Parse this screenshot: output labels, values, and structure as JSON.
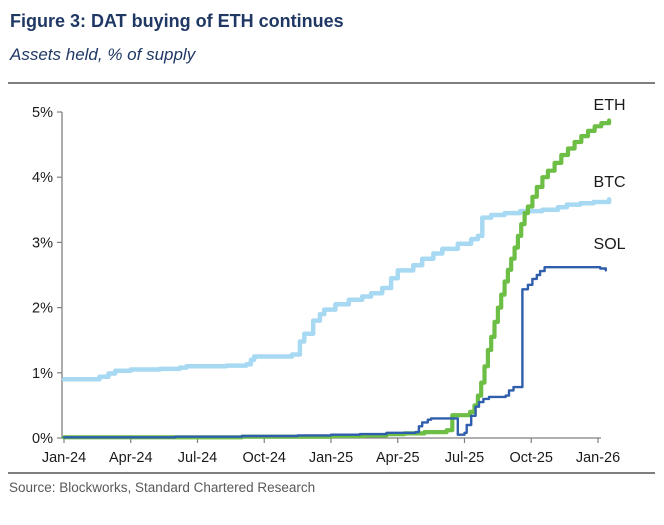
{
  "figure": {
    "title": "Figure 3: DAT buying of ETH continues",
    "subtitle": "Assets held, % of supply",
    "source": "Source: Blockworks, Standard Chartered Research"
  },
  "colors": {
    "title_navy": "#1F3864",
    "rule_gray": "#7F7F7F",
    "axis_gray": "#808080",
    "tick_text": "#1A1A1A",
    "eth_green": "#6CBE45",
    "btc_light_blue": "#A8D9F2",
    "sol_blue": "#2F5FAC",
    "source_gray": "#595959"
  },
  "chart_data": {
    "type": "line",
    "title": "Figure 3: DAT buying of ETH continues",
    "subtitle": "Assets held, % of supply",
    "xlabel": "",
    "ylabel": "Assets held, % of supply",
    "x_unit": "months since Jan-2024",
    "xlim": [
      0,
      24.6
    ],
    "ylim": [
      0,
      5
    ],
    "grid": false,
    "legend_position": "end-of-line labels",
    "x_tick_months": [
      0,
      3,
      6,
      9,
      12,
      15,
      18,
      21,
      24
    ],
    "x_tick_labels": [
      "Jan-24",
      "Apr-24",
      "Jul-24",
      "Oct-24",
      "Jan-25",
      "Apr-25",
      "Jul-25",
      "Oct-25",
      "Jan-26"
    ],
    "y_tick_labels": [
      "0%",
      "1%",
      "2%",
      "3%",
      "4%",
      "5%"
    ],
    "series": [
      {
        "name": "BTC",
        "color": "#A8D9F2",
        "thickness": 4.5,
        "label_at": [
          23.8,
          3.85
        ],
        "points": [
          [
            0,
            0.9
          ],
          [
            1.3,
            0.9
          ],
          [
            1.6,
            0.94
          ],
          [
            2.0,
            0.99
          ],
          [
            2.3,
            1.03
          ],
          [
            3.0,
            1.05
          ],
          [
            4.3,
            1.06
          ],
          [
            5.2,
            1.08
          ],
          [
            5.5,
            1.1
          ],
          [
            7.3,
            1.11
          ],
          [
            8.2,
            1.13
          ],
          [
            8.4,
            1.2
          ],
          [
            8.55,
            1.25
          ],
          [
            10.25,
            1.28
          ],
          [
            10.6,
            1.48
          ],
          [
            10.8,
            1.6
          ],
          [
            11.2,
            1.8
          ],
          [
            11.5,
            1.9
          ],
          [
            11.7,
            1.97
          ],
          [
            12.2,
            2.05
          ],
          [
            12.8,
            2.12
          ],
          [
            13.4,
            2.17
          ],
          [
            13.8,
            2.22
          ],
          [
            14.3,
            2.3
          ],
          [
            14.7,
            2.45
          ],
          [
            15.0,
            2.57
          ],
          [
            15.7,
            2.65
          ],
          [
            16.1,
            2.75
          ],
          [
            16.6,
            2.83
          ],
          [
            17.0,
            2.9
          ],
          [
            17.7,
            2.98
          ],
          [
            18.3,
            3.05
          ],
          [
            18.6,
            3.1
          ],
          [
            18.8,
            3.12
          ],
          [
            18.8,
            3.38
          ],
          [
            19.2,
            3.42
          ],
          [
            19.8,
            3.45
          ],
          [
            20.5,
            3.48
          ],
          [
            21.5,
            3.5
          ],
          [
            22.2,
            3.54
          ],
          [
            22.6,
            3.58
          ],
          [
            23.2,
            3.6
          ],
          [
            23.8,
            3.62
          ],
          [
            24.5,
            3.66
          ]
        ]
      },
      {
        "name": "ETH",
        "color": "#6CBE45",
        "thickness": 4.2,
        "label_at": [
          23.8,
          5.03
        ],
        "points": [
          [
            0,
            0.01
          ],
          [
            8,
            0.02
          ],
          [
            12,
            0.03
          ],
          [
            13.5,
            0.04
          ],
          [
            14.5,
            0.06
          ],
          [
            15.3,
            0.07
          ],
          [
            16.2,
            0.09
          ],
          [
            17.2,
            0.12
          ],
          [
            17.45,
            0.35
          ],
          [
            18.25,
            0.4
          ],
          [
            18.45,
            0.5
          ],
          [
            18.6,
            0.65
          ],
          [
            18.75,
            0.85
          ],
          [
            18.9,
            1.1
          ],
          [
            19.05,
            1.35
          ],
          [
            19.2,
            1.55
          ],
          [
            19.35,
            1.78
          ],
          [
            19.5,
            2.0
          ],
          [
            19.65,
            2.2
          ],
          [
            19.8,
            2.4
          ],
          [
            19.95,
            2.58
          ],
          [
            20.1,
            2.75
          ],
          [
            20.25,
            2.92
          ],
          [
            20.4,
            3.1
          ],
          [
            20.55,
            3.28
          ],
          [
            20.7,
            3.45
          ],
          [
            20.85,
            3.55
          ],
          [
            21.05,
            3.7
          ],
          [
            21.25,
            3.85
          ],
          [
            21.5,
            4.0
          ],
          [
            21.75,
            4.1
          ],
          [
            22.05,
            4.22
          ],
          [
            22.35,
            4.34
          ],
          [
            22.65,
            4.44
          ],
          [
            22.95,
            4.54
          ],
          [
            23.25,
            4.63
          ],
          [
            23.55,
            4.71
          ],
          [
            23.85,
            4.78
          ],
          [
            24.15,
            4.83
          ],
          [
            24.5,
            4.87
          ]
        ]
      },
      {
        "name": "SOL",
        "color": "#2F5FAC",
        "thickness": 2.4,
        "label_at": [
          23.8,
          2.9
        ],
        "points": [
          [
            0,
            0.01
          ],
          [
            5,
            0.02
          ],
          [
            8,
            0.03
          ],
          [
            10.5,
            0.04
          ],
          [
            12,
            0.05
          ],
          [
            13.3,
            0.06
          ],
          [
            14.5,
            0.08
          ],
          [
            15.8,
            0.09
          ],
          [
            15.95,
            0.18
          ],
          [
            16.1,
            0.24
          ],
          [
            16.35,
            0.28
          ],
          [
            16.5,
            0.3
          ],
          [
            17.7,
            0.3
          ],
          [
            17.7,
            0.05
          ],
          [
            18.0,
            0.08
          ],
          [
            18.1,
            0.2
          ],
          [
            18.3,
            0.34
          ],
          [
            18.5,
            0.48
          ],
          [
            18.65,
            0.55
          ],
          [
            18.85,
            0.6
          ],
          [
            19.1,
            0.63
          ],
          [
            19.85,
            0.65
          ],
          [
            20.0,
            0.73
          ],
          [
            20.2,
            0.78
          ],
          [
            20.55,
            0.78
          ],
          [
            20.6,
            2.28
          ],
          [
            20.85,
            2.35
          ],
          [
            21.05,
            2.44
          ],
          [
            21.25,
            2.5
          ],
          [
            21.4,
            2.56
          ],
          [
            21.6,
            2.62
          ],
          [
            23.85,
            2.62
          ],
          [
            24.1,
            2.6
          ],
          [
            24.35,
            2.57
          ]
        ]
      }
    ]
  }
}
